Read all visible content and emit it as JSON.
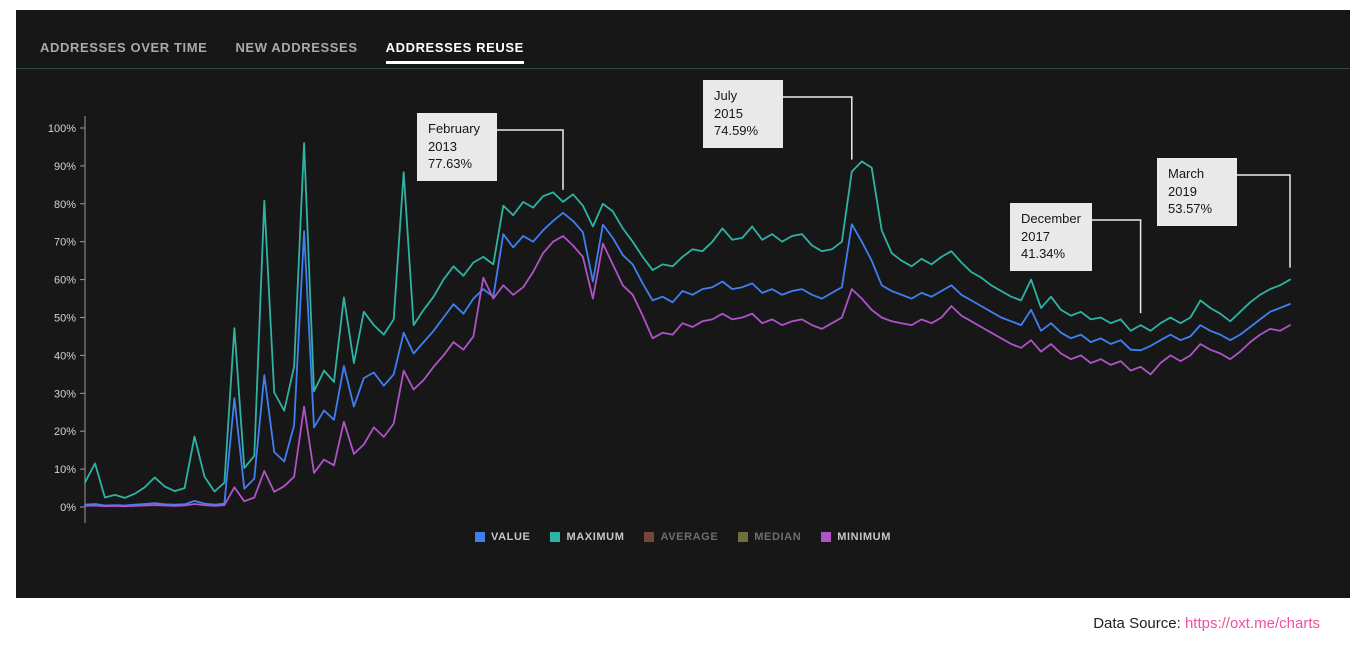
{
  "tabs": [
    {
      "label": "ADDRESSES OVER TIME",
      "active": false
    },
    {
      "label": "NEW ADDRESSES",
      "active": false
    },
    {
      "label": "ADDRESSES REUSE",
      "active": true
    }
  ],
  "footer": {
    "label": "Data Source:",
    "link": "https://oxt.me/charts",
    "link_color": "#f0509e"
  },
  "chart_data": {
    "type": "line",
    "title": "ADDRESSES REUSE",
    "grid": false,
    "legend_position": "bottom-center",
    "x_axis": {
      "cadence": "monthly",
      "start": "2009-02",
      "end": "2019-03",
      "points": 122,
      "labels_visible": false
    },
    "y_axis": {
      "min": 0,
      "max": 100,
      "tick_step": 10,
      "unit": "%",
      "tick_labels": [
        "0%",
        "10%",
        "20%",
        "30%",
        "40%",
        "50%",
        "60%",
        "70%",
        "80%",
        "90%",
        "100%"
      ]
    },
    "series": [
      {
        "name": "VALUE",
        "color": "#3f7ff2",
        "enabled": true,
        "values": [
          0.6,
          0.8,
          0.4,
          0.5,
          0.4,
          0.6,
          0.8,
          1.0,
          0.7,
          0.6,
          0.7,
          1.6,
          0.9,
          0.6,
          0.9,
          28.7,
          4.8,
          7.5,
          34.8,
          14.5,
          12.0,
          21.5,
          72.8,
          21.0,
          25.5,
          23.0,
          37.2,
          26.5,
          34.0,
          35.5,
          32.0,
          35.0,
          46.0,
          40.5,
          43.5,
          46.5,
          50.0,
          53.5,
          51.0,
          55.0,
          57.5,
          55.5,
          72.0,
          68.5,
          71.5,
          70.0,
          73.0,
          75.5,
          77.63,
          75.5,
          72.5,
          59.5,
          74.5,
          71.0,
          66.5,
          64.0,
          59.0,
          54.5,
          55.5,
          54.0,
          57.0,
          56.0,
          57.5,
          58.0,
          59.5,
          57.5,
          58.0,
          59.0,
          56.5,
          57.5,
          56.0,
          57.0,
          57.5,
          56.0,
          55.0,
          56.5,
          58.0,
          74.59,
          70.0,
          65.0,
          58.5,
          57.0,
          56.0,
          55.0,
          56.5,
          55.5,
          57.0,
          58.5,
          56.0,
          54.5,
          53.0,
          51.5,
          50.0,
          49.0,
          48.0,
          52.0,
          46.5,
          48.5,
          46.0,
          44.5,
          45.5,
          43.5,
          44.5,
          43.0,
          44.0,
          41.5,
          41.34,
          42.5,
          44.0,
          45.5,
          44.0,
          45.0,
          48.0,
          46.5,
          45.5,
          44.0,
          45.5,
          47.5,
          49.5,
          51.5,
          52.5,
          53.57
        ]
      },
      {
        "name": "MAXIMUM",
        "color": "#2eb3a3",
        "enabled": true,
        "values": [
          6.5,
          11.5,
          2.5,
          3.2,
          2.4,
          3.5,
          5.2,
          7.8,
          5.4,
          4.2,
          5.0,
          18.6,
          8.0,
          4.1,
          6.4,
          47.2,
          10.3,
          13.5,
          80.8,
          30.2,
          25.4,
          37.0,
          96.0,
          30.5,
          36.0,
          33.0,
          55.3,
          38.0,
          51.5,
          48.0,
          45.5,
          49.5,
          88.3,
          48.0,
          52.0,
          55.5,
          60.0,
          63.5,
          61.0,
          64.5,
          66.0,
          64.0,
          79.5,
          77.0,
          80.5,
          79.0,
          82.0,
          83.0,
          80.5,
          82.5,
          79.5,
          74.0,
          80.0,
          78.0,
          73.5,
          70.0,
          66.0,
          62.5,
          64.0,
          63.5,
          66.0,
          68.0,
          67.5,
          70.0,
          73.5,
          70.5,
          71.0,
          74.0,
          70.5,
          72.0,
          70.0,
          71.5,
          72.0,
          69.0,
          67.5,
          68.0,
          70.0,
          88.5,
          91.2,
          89.5,
          73.0,
          67.0,
          65.0,
          63.5,
          65.5,
          64.0,
          66.0,
          67.5,
          64.5,
          62.0,
          60.5,
          58.5,
          57.0,
          55.5,
          54.5,
          60.0,
          52.5,
          55.5,
          52.0,
          50.5,
          51.5,
          49.5,
          50.0,
          48.5,
          49.5,
          46.5,
          48.0,
          46.5,
          48.5,
          50.0,
          48.5,
          50.0,
          54.5,
          52.5,
          51.0,
          49.0,
          51.5,
          54.0,
          56.0,
          57.5,
          58.5,
          60.0
        ]
      },
      {
        "name": "AVERAGE",
        "color": "#74463a",
        "enabled": false,
        "values": null
      },
      {
        "name": "MEDIAN",
        "color": "#6f6f39",
        "enabled": false,
        "values": null
      },
      {
        "name": "MINIMUM",
        "color": "#b052c8",
        "enabled": true,
        "values": [
          0.3,
          0.4,
          0.2,
          0.3,
          0.2,
          0.3,
          0.4,
          0.5,
          0.4,
          0.3,
          0.4,
          0.8,
          0.5,
          0.3,
          0.5,
          5.2,
          1.5,
          2.5,
          9.5,
          4.0,
          5.5,
          8.0,
          26.5,
          9.0,
          12.5,
          11.0,
          22.5,
          14.0,
          16.5,
          21.0,
          18.5,
          22.0,
          36.0,
          31.0,
          33.5,
          37.0,
          40.0,
          43.5,
          41.5,
          45.0,
          60.5,
          55.0,
          58.5,
          56.0,
          58.0,
          62.0,
          67.0,
          70.0,
          71.5,
          69.0,
          66.0,
          55.0,
          69.5,
          64.0,
          58.5,
          56.0,
          50.5,
          44.5,
          46.0,
          45.5,
          48.5,
          47.5,
          49.0,
          49.5,
          51.0,
          49.5,
          50.0,
          51.0,
          48.5,
          49.5,
          48.0,
          49.0,
          49.5,
          48.0,
          47.0,
          48.5,
          50.0,
          57.5,
          55.0,
          52.0,
          50.0,
          49.0,
          48.5,
          48.0,
          49.5,
          48.5,
          50.0,
          53.0,
          50.5,
          49.0,
          47.5,
          46.0,
          44.5,
          43.0,
          42.0,
          44.0,
          41.0,
          43.0,
          40.5,
          39.0,
          40.0,
          38.0,
          39.0,
          37.5,
          38.5,
          36.0,
          37.0,
          35.0,
          38.0,
          40.0,
          38.5,
          40.0,
          43.0,
          41.5,
          40.5,
          39.0,
          41.0,
          43.5,
          45.5,
          47.0,
          46.5,
          48.0
        ]
      }
    ],
    "annotations": [
      {
        "month": "February",
        "year": "2013",
        "value": "77.63%",
        "point_index": 48,
        "series": "VALUE"
      },
      {
        "month": "July",
        "year": "2015",
        "value": "74.59%",
        "point_index": 77,
        "series": "VALUE"
      },
      {
        "month": "December",
        "year": "2017",
        "value": "41.34%",
        "point_index": 106,
        "series": "VALUE"
      },
      {
        "month": "March",
        "year": "2019",
        "value": "53.57%",
        "point_index": 121,
        "series": "VALUE"
      }
    ]
  }
}
